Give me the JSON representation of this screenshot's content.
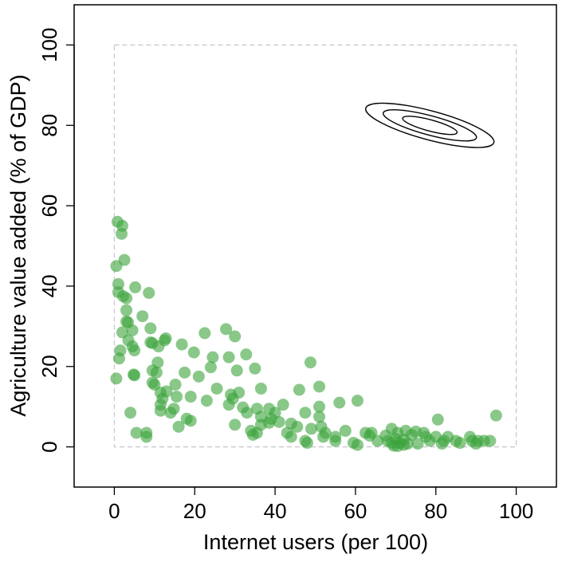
{
  "chart_data": {
    "type": "scatter",
    "title": "",
    "xlabel": "Internet users (per 100)",
    "ylabel": "Agriculture value added (% of GDP)",
    "xlim": [
      -10,
      110
    ],
    "ylim": [
      -10,
      110
    ],
    "xticks": [
      0,
      20,
      40,
      60,
      80,
      100
    ],
    "yticks": [
      0,
      20,
      40,
      60,
      80,
      100
    ],
    "grid": false,
    "legend": "none",
    "reference_box": {
      "x": [
        0,
        100
      ],
      "y": [
        0,
        100
      ],
      "style": "dashed",
      "color": "#c8c8c8"
    },
    "point_color": "#3aa33a",
    "point_opacity": 0.6,
    "contour": {
      "center": [
        78.5,
        80
      ],
      "angle_deg": -15,
      "levels": [
        {
          "rx": 16.5,
          "ry": 3.6
        },
        {
          "rx": 12.0,
          "ry": 2.4
        },
        {
          "rx": 7.0,
          "ry": 1.4
        }
      ]
    },
    "points": [
      [
        0.8,
        56
      ],
      [
        2.0,
        55
      ],
      [
        1.8,
        53
      ],
      [
        2.5,
        46.5
      ],
      [
        0.5,
        45
      ],
      [
        1.0,
        40.5
      ],
      [
        5.2,
        39.7
      ],
      [
        1.0,
        38.5
      ],
      [
        8.6,
        38.3
      ],
      [
        2.2,
        37.5
      ],
      [
        3.0,
        37
      ],
      [
        3.0,
        34
      ],
      [
        7.0,
        32.5
      ],
      [
        3.0,
        31.2
      ],
      [
        3.4,
        31
      ],
      [
        4.5,
        29
      ],
      [
        9.0,
        29.5
      ],
      [
        27.8,
        29.3
      ],
      [
        2.0,
        28.5
      ],
      [
        22.5,
        28.3
      ],
      [
        30.0,
        27.5
      ],
      [
        12.8,
        27
      ],
      [
        12.5,
        26.5
      ],
      [
        3.5,
        26.5
      ],
      [
        9.0,
        26
      ],
      [
        9.5,
        25.8
      ],
      [
        16.8,
        25.5
      ],
      [
        4.5,
        25
      ],
      [
        11.0,
        25
      ],
      [
        5.0,
        24
      ],
      [
        1.5,
        24
      ],
      [
        19.8,
        23.5
      ],
      [
        32.8,
        23
      ],
      [
        24.5,
        22.3
      ],
      [
        28.5,
        22.3
      ],
      [
        1.2,
        22
      ],
      [
        10.8,
        21
      ],
      [
        48.8,
        21
      ],
      [
        9.5,
        19
      ],
      [
        24.0,
        19.8
      ],
      [
        30.5,
        19
      ],
      [
        35.0,
        19.5
      ],
      [
        10.5,
        18.5
      ],
      [
        17.5,
        18.5
      ],
      [
        4.8,
        18
      ],
      [
        5.0,
        17.8
      ],
      [
        0.5,
        17
      ],
      [
        21.0,
        17.5
      ],
      [
        9.5,
        16
      ],
      [
        10.0,
        15.5
      ],
      [
        15.2,
        15.5
      ],
      [
        51.0,
        15
      ],
      [
        25.5,
        14.5
      ],
      [
        36.5,
        14.5
      ],
      [
        46.0,
        14.2
      ],
      [
        11.5,
        13.5
      ],
      [
        13.0,
        13.8
      ],
      [
        31.0,
        13.5
      ],
      [
        29.0,
        13
      ],
      [
        15.5,
        12.5
      ],
      [
        19.0,
        12.5
      ],
      [
        12.0,
        12
      ],
      [
        29.5,
        12
      ],
      [
        23.0,
        11.5
      ],
      [
        60.5,
        11.5
      ],
      [
        56.0,
        11
      ],
      [
        11.5,
        10.5
      ],
      [
        28.5,
        10.5
      ],
      [
        42.0,
        10.5
      ],
      [
        51.0,
        10
      ],
      [
        14.8,
        9.5
      ],
      [
        32.0,
        9.8
      ],
      [
        35.5,
        9.5
      ],
      [
        38.5,
        9.5
      ],
      [
        11.5,
        9
      ],
      [
        14.0,
        8.5
      ],
      [
        33.0,
        8.5
      ],
      [
        40.0,
        8.5
      ],
      [
        47.5,
        8.5
      ],
      [
        4.0,
        8.5
      ],
      [
        36.5,
        7.5
      ],
      [
        39.0,
        7
      ],
      [
        51.0,
        7.5
      ],
      [
        18.0,
        7
      ],
      [
        19.0,
        6.5
      ],
      [
        41.0,
        6.2
      ],
      [
        38.5,
        6
      ],
      [
        44.0,
        5.8
      ],
      [
        36.5,
        5.5
      ],
      [
        30.0,
        5.5
      ],
      [
        16.0,
        5
      ],
      [
        51.5,
        5
      ],
      [
        45.5,
        5
      ],
      [
        49.0,
        4.5
      ],
      [
        34.0,
        4
      ],
      [
        57.5,
        4
      ],
      [
        69.0,
        4.5
      ],
      [
        72.5,
        4
      ],
      [
        35.5,
        3.5
      ],
      [
        43.0,
        3.5
      ],
      [
        52.5,
        3.5
      ],
      [
        62.5,
        3.5
      ],
      [
        64.0,
        3.5
      ],
      [
        70.5,
        3.5
      ],
      [
        75.0,
        3.8
      ],
      [
        77.0,
        3.5
      ],
      [
        5.5,
        3.5
      ],
      [
        8.0,
        3.5
      ],
      [
        8.0,
        2.5
      ],
      [
        34.5,
        3
      ],
      [
        44.0,
        2.5
      ],
      [
        52.0,
        2.5
      ],
      [
        55.0,
        2.5
      ],
      [
        63.5,
        2.8
      ],
      [
        67.5,
        2.8
      ],
      [
        74.0,
        3
      ],
      [
        77.5,
        2.5
      ],
      [
        80.0,
        2.5
      ],
      [
        83.0,
        2.5
      ],
      [
        88.5,
        2.5
      ],
      [
        47.5,
        1.5
      ],
      [
        55.0,
        1.5
      ],
      [
        65.5,
        1.5
      ],
      [
        68.0,
        1.5
      ],
      [
        70.0,
        2
      ],
      [
        72.0,
        1.8
      ],
      [
        78.5,
        1.5
      ],
      [
        82.0,
        1.5
      ],
      [
        85.0,
        1.5
      ],
      [
        89.0,
        1.5
      ],
      [
        90.5,
        1.5
      ],
      [
        92.0,
        1.5
      ],
      [
        93.5,
        1.5
      ],
      [
        48.0,
        1
      ],
      [
        59.5,
        1
      ],
      [
        69.0,
        1
      ],
      [
        71.0,
        1
      ],
      [
        73.0,
        0.8
      ],
      [
        75.5,
        0.8
      ],
      [
        81.5,
        0.8
      ],
      [
        86.0,
        1
      ],
      [
        90.0,
        0.8
      ],
      [
        60.5,
        0.5
      ],
      [
        69.5,
        0.3
      ],
      [
        70.5,
        0.2
      ],
      [
        72.0,
        0.5
      ],
      [
        80.5,
        6.8
      ],
      [
        95.0,
        7.8
      ]
    ]
  }
}
